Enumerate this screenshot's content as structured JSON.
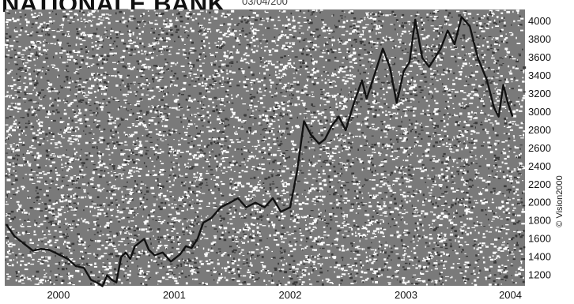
{
  "header": {
    "title": "NATIONALE BANK",
    "date_stamp": "03/04/200"
  },
  "credit": "© Vision2000",
  "colors": {
    "line": "#111111",
    "noise_dark": "#3a3a3a",
    "noise_light": "#9a9a9a",
    "background": "#ffffff"
  },
  "chart_data": {
    "type": "line",
    "title": "NATIONALE BANK",
    "xlabel": "",
    "ylabel": "",
    "xlim": [
      1999.55,
      2004.0
    ],
    "ylim": [
      1100,
      4150
    ],
    "y_ticks": [
      1200,
      1400,
      1600,
      1800,
      2000,
      2200,
      2400,
      2600,
      2800,
      3000,
      3200,
      3400,
      3600,
      3800,
      4000
    ],
    "x_ticks": [
      {
        "label": "2000",
        "value": 2000.0
      },
      {
        "label": "2001",
        "value": 2001.0
      },
      {
        "label": "2002",
        "value": 2002.0
      },
      {
        "label": "2003",
        "value": 2003.0
      },
      {
        "label": "2004",
        "value": 2004.0
      }
    ],
    "grid": false,
    "legend": "none",
    "series": [
      {
        "x": [
          1999.55,
          1999.62,
          1999.7,
          1999.78,
          1999.85,
          1999.92,
          2000.0,
          2000.08,
          2000.15,
          2000.22,
          2000.28,
          2000.33,
          2000.38,
          2000.42,
          2000.46,
          2000.5,
          2000.54,
          2000.58,
          2000.62,
          2000.66,
          2000.7,
          2000.74,
          2000.78,
          2000.83,
          2000.9,
          2000.97,
          2001.05,
          2001.1,
          2001.15,
          2001.2,
          2001.25,
          2001.32,
          2001.4,
          2001.48,
          2001.55,
          2001.62,
          2001.7,
          2001.78,
          2001.85,
          2001.92,
          2002.0,
          2002.06,
          2002.12,
          2002.18,
          2002.25,
          2002.3,
          2002.36,
          2002.42,
          2002.48,
          2002.55,
          2002.62,
          2002.66,
          2002.7,
          2002.75,
          2002.8,
          2002.86,
          2002.92,
          2002.98,
          2003.03,
          2003.08,
          2003.14,
          2003.2,
          2003.25,
          2003.3,
          2003.36,
          2003.42,
          2003.48,
          2003.55,
          2003.62,
          2003.7,
          2003.76,
          2003.8,
          2003.84,
          2003.88,
          2003.92
        ],
        "y": [
          1760,
          1630,
          1550,
          1470,
          1490,
          1480,
          1430,
          1380,
          1300,
          1280,
          1150,
          1120,
          1080,
          1200,
          1150,
          1120,
          1400,
          1450,
          1380,
          1520,
          1560,
          1600,
          1480,
          1420,
          1450,
          1350,
          1430,
          1520,
          1500,
          1600,
          1780,
          1830,
          1950,
          2000,
          2050,
          1950,
          2000,
          1950,
          2050,
          1900,
          1950,
          2350,
          2900,
          2750,
          2650,
          2700,
          2850,
          2950,
          2800,
          3100,
          3350,
          3150,
          3300,
          3500,
          3700,
          3500,
          3100,
          3450,
          3550,
          4020,
          3600,
          3500,
          3600,
          3700,
          3900,
          3750,
          4050,
          3950,
          3600,
          3350,
          3050,
          2950,
          3300,
          3100,
          2950
        ]
      }
    ]
  }
}
